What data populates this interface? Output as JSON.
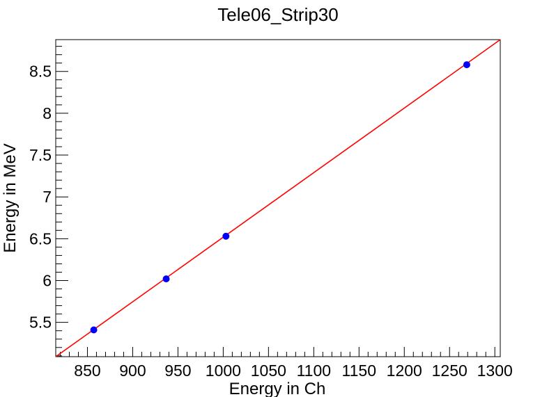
{
  "chart_data": {
    "type": "scatter",
    "title": "Tele06_Strip30",
    "xlabel": "Energy in Ch",
    "ylabel": "Energy in MeV",
    "xlim": [
      815,
      1306
    ],
    "ylim": [
      5.09,
      8.88
    ],
    "x_ticks": [
      850,
      900,
      950,
      1000,
      1050,
      1100,
      1150,
      1200,
      1250,
      1300
    ],
    "y_ticks": [
      5.5,
      6,
      6.5,
      7,
      7.5,
      8,
      8.5
    ],
    "x_tick_labels": [
      "850",
      "900",
      "950",
      "1000",
      "1050",
      "1100",
      "1150",
      "1200",
      "1250",
      "1300"
    ],
    "y_tick_labels": [
      "5.5",
      "6",
      "6.5",
      "7",
      "7.5",
      "8",
      "8.5"
    ],
    "grid": false,
    "series": [
      {
        "points": [
          {
            "x": 857,
            "y": 5.41
          },
          {
            "x": 937,
            "y": 6.02
          },
          {
            "x": 1003,
            "y": 6.53
          },
          {
            "x": 1269,
            "y": 8.58
          }
        ],
        "color": "#0000ff",
        "marker": "circle"
      }
    ],
    "fit_line": {
      "x": [
        815,
        1306
      ],
      "y": [
        5.09,
        8.88
      ],
      "color": "#ff0000"
    }
  }
}
